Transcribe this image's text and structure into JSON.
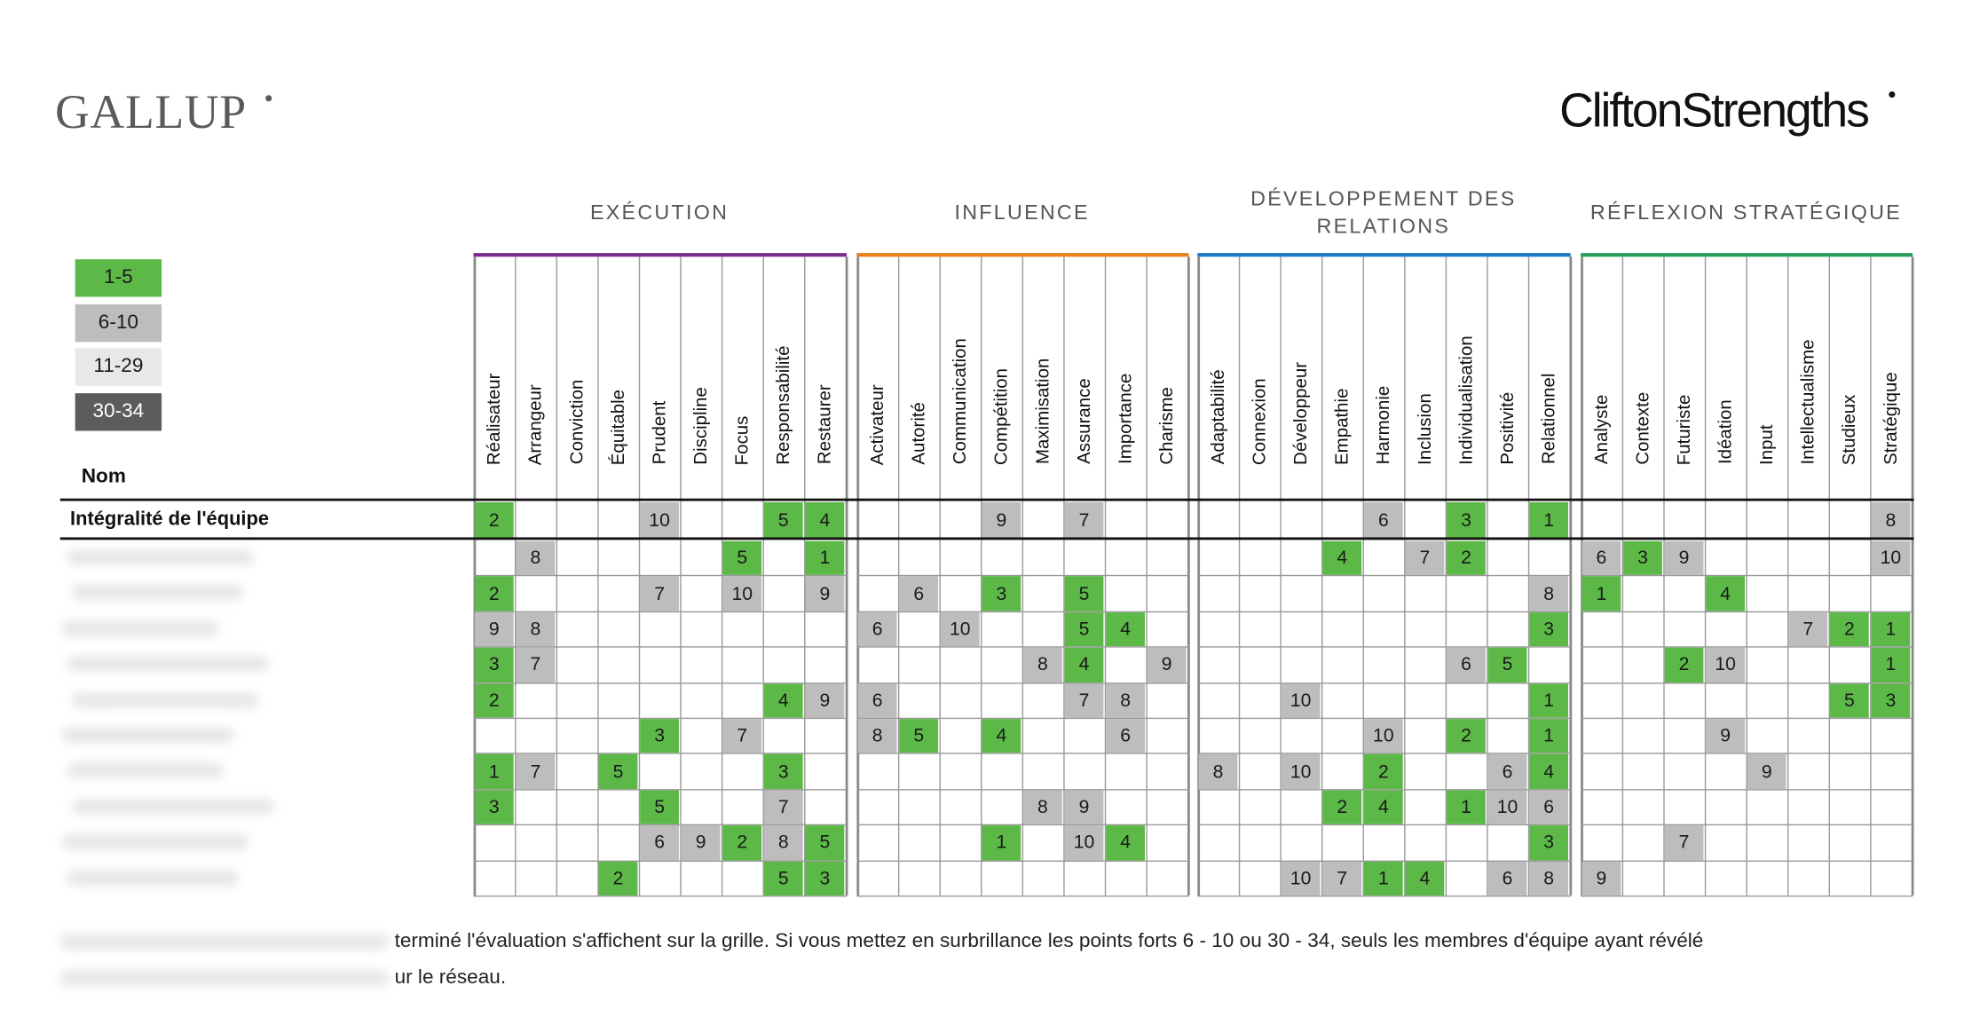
{
  "header": {
    "logo_left": "GALLUP",
    "logo_right": "CliftonStrengths"
  },
  "legend": [
    {
      "label": "1-5",
      "min": 1,
      "max": 5,
      "color": "#5cb947",
      "text_color": "#1a1a1a"
    },
    {
      "label": "6-10",
      "min": 6,
      "max": 10,
      "color": "#bdbdbd",
      "text_color": "#1a1a1a"
    },
    {
      "label": "11-29",
      "min": 11,
      "max": 29,
      "color": "#e8e8e8",
      "text_color": "#1a1a1a"
    },
    {
      "label": "30-34",
      "min": 30,
      "max": 34,
      "color": "#5c5c5c",
      "text_color": "#ffffff"
    }
  ],
  "groups": [
    {
      "title": "EXÉCUTION",
      "color": "#7b2f8c",
      "themes": [
        "Réalisateur",
        "Arrangeur",
        "Conviction",
        "Équitable",
        "Prudent",
        "Discipline",
        "Focus",
        "Responsabilité",
        "Restaurer"
      ]
    },
    {
      "title": "INFLUENCE",
      "color": "#e8801e",
      "themes": [
        "Activateur",
        "Autorité",
        "Communication",
        "Compétition",
        "Maximisation",
        "Assurance",
        "Importance",
        "Charisme"
      ]
    },
    {
      "title": "DÉVELOPPEMENT DES RELATIONS",
      "color": "#1f7bc6",
      "themes": [
        "Adaptabilité",
        "Connexion",
        "Développeur",
        "Empathie",
        "Harmonie",
        "Inclusion",
        "Individualisation",
        "Positivité",
        "Relationnel"
      ]
    },
    {
      "title": "RÉFLEXION STRATÉGIQUE",
      "color": "#2a9d5c",
      "themes": [
        "Analyste",
        "Contexte",
        "Futuriste",
        "Idéation",
        "Input",
        "Intellectualisme",
        "Studieux",
        "Stratégique"
      ]
    }
  ],
  "table": {
    "name_header": "Nom",
    "rows": [
      {
        "label": "Intégralité de l'équipe",
        "cells": [
          2,
          null,
          null,
          null,
          10,
          null,
          null,
          5,
          4,
          null,
          null,
          null,
          9,
          null,
          7,
          null,
          null,
          null,
          null,
          null,
          null,
          6,
          null,
          3,
          null,
          1,
          null,
          null,
          null,
          null,
          null,
          null,
          null,
          8
        ]
      },
      {
        "cells": [
          null,
          8,
          null,
          null,
          null,
          null,
          5,
          null,
          1,
          null,
          null,
          null,
          null,
          null,
          null,
          null,
          null,
          null,
          null,
          null,
          4,
          null,
          7,
          2,
          null,
          null,
          6,
          3,
          9,
          null,
          null,
          null,
          null,
          10
        ]
      },
      {
        "cells": [
          2,
          null,
          null,
          null,
          7,
          null,
          10,
          null,
          9,
          null,
          6,
          null,
          3,
          null,
          5,
          null,
          null,
          null,
          null,
          null,
          null,
          null,
          null,
          null,
          null,
          8,
          1,
          null,
          null,
          4,
          null,
          null,
          null,
          null
        ]
      },
      {
        "cells": [
          9,
          8,
          null,
          null,
          null,
          null,
          null,
          null,
          null,
          6,
          null,
          10,
          null,
          null,
          5,
          4,
          null,
          null,
          null,
          null,
          null,
          null,
          null,
          null,
          null,
          3,
          null,
          null,
          null,
          null,
          null,
          7,
          2,
          1
        ]
      },
      {
        "cells": [
          3,
          7,
          null,
          null,
          null,
          null,
          null,
          null,
          null,
          null,
          null,
          null,
          null,
          8,
          4,
          null,
          9,
          null,
          null,
          null,
          null,
          null,
          null,
          6,
          5,
          null,
          null,
          null,
          2,
          10,
          null,
          null,
          null,
          1
        ]
      },
      {
        "cells": [
          2,
          null,
          null,
          null,
          null,
          null,
          null,
          4,
          9,
          6,
          null,
          null,
          null,
          null,
          7,
          8,
          null,
          null,
          null,
          10,
          null,
          null,
          null,
          null,
          null,
          1,
          null,
          null,
          null,
          null,
          null,
          null,
          5,
          3
        ]
      },
      {
        "cells": [
          null,
          null,
          null,
          null,
          3,
          null,
          7,
          null,
          null,
          8,
          5,
          null,
          4,
          null,
          null,
          6,
          null,
          null,
          null,
          null,
          null,
          10,
          null,
          2,
          null,
          1,
          null,
          null,
          null,
          9,
          null,
          null,
          null,
          null
        ]
      },
      {
        "cells": [
          1,
          7,
          null,
          5,
          null,
          null,
          null,
          3,
          null,
          null,
          null,
          null,
          null,
          null,
          null,
          null,
          null,
          8,
          null,
          10,
          null,
          2,
          null,
          null,
          6,
          4,
          null,
          null,
          null,
          null,
          9,
          null,
          null,
          null
        ]
      },
      {
        "cells": [
          3,
          null,
          null,
          null,
          5,
          null,
          null,
          7,
          null,
          null,
          null,
          null,
          null,
          8,
          9,
          null,
          null,
          null,
          null,
          null,
          2,
          4,
          null,
          1,
          10,
          6,
          null,
          null,
          null,
          null,
          null,
          null,
          null,
          null
        ]
      },
      {
        "cells": [
          null,
          null,
          null,
          null,
          6,
          9,
          2,
          8,
          5,
          null,
          null,
          null,
          1,
          null,
          10,
          4,
          null,
          null,
          null,
          null,
          null,
          null,
          null,
          null,
          null,
          3,
          null,
          null,
          7,
          null,
          null,
          null,
          null,
          null
        ]
      },
      {
        "cells": [
          null,
          null,
          null,
          2,
          null,
          null,
          null,
          5,
          3,
          null,
          null,
          null,
          null,
          null,
          null,
          null,
          null,
          null,
          null,
          10,
          7,
          1,
          4,
          null,
          6,
          8,
          9,
          null,
          null,
          null,
          null,
          null,
          null,
          null
        ]
      }
    ]
  },
  "footer": {
    "lines": [
      "terminé l'évaluation s'affichent sur la grille. Si vous mettez en surbrillance les points forts 6 - 10 ou 30 - 34, seuls les membres d'équipe ayant révélé",
      "ur le réseau."
    ]
  }
}
